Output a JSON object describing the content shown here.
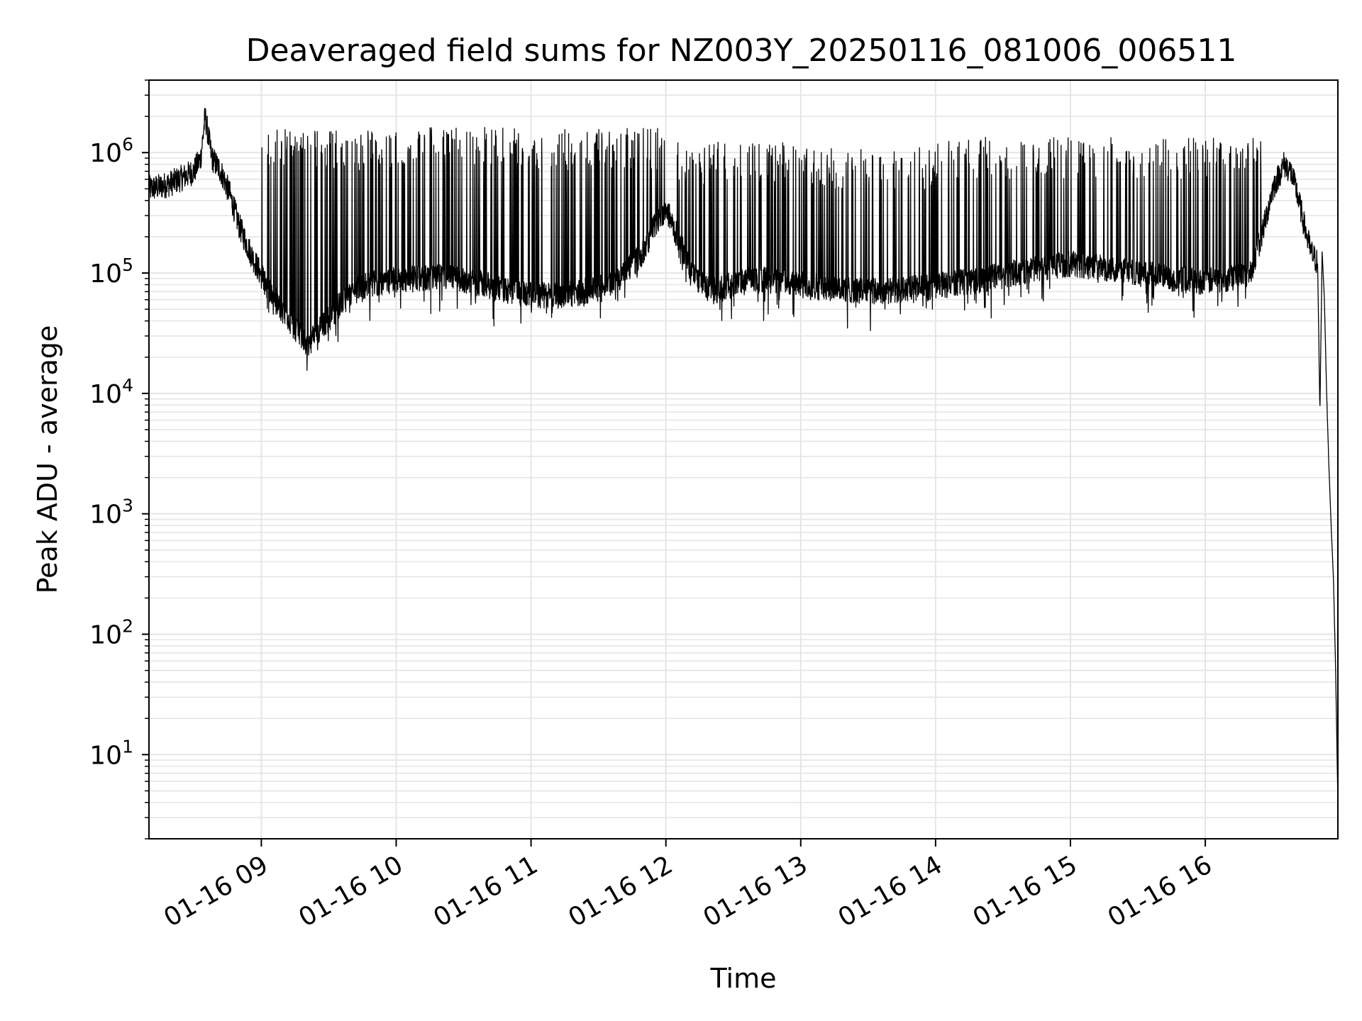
{
  "chart_data": {
    "type": "line",
    "title": "Deaveraged field sums for NZ003Y_20250116_081006_006511",
    "xlabel": "Time",
    "ylabel": "Peak ADU - average",
    "y_scale": "log",
    "x_range": [
      "2025-01-16 08:10",
      "2025-01-16 16:59"
    ],
    "ylim": [
      2,
      4000000
    ],
    "grid": true,
    "line_color": "#000000",
    "grid_color": "#e5e5e5",
    "x_ticks": [
      {
        "time": "2025-01-16 09:00",
        "label": "01-16 09"
      },
      {
        "time": "2025-01-16 10:00",
        "label": "01-16 10"
      },
      {
        "time": "2025-01-16 11:00",
        "label": "01-16 11"
      },
      {
        "time": "2025-01-16 12:00",
        "label": "01-16 12"
      },
      {
        "time": "2025-01-16 13:00",
        "label": "01-16 13"
      },
      {
        "time": "2025-01-16 14:00",
        "label": "01-16 14"
      },
      {
        "time": "2025-01-16 15:00",
        "label": "01-16 15"
      },
      {
        "time": "2025-01-16 16:00",
        "label": "01-16 16"
      }
    ],
    "y_ticks": [
      {
        "value": 10,
        "base": "10",
        "exp": "1"
      },
      {
        "value": 100,
        "base": "10",
        "exp": "2"
      },
      {
        "value": 1000,
        "base": "10",
        "exp": "3"
      },
      {
        "value": 10000,
        "base": "10",
        "exp": "4"
      },
      {
        "value": 100000,
        "base": "10",
        "exp": "5"
      },
      {
        "value": 1000000,
        "base": "10",
        "exp": "6"
      }
    ],
    "series": [
      {
        "points": [
          [
            "2025-01-16 08:10",
            500000
          ],
          [
            "2025-01-16 08:15",
            520000
          ],
          [
            "2025-01-16 08:20",
            560000
          ],
          [
            "2025-01-16 08:25",
            620000
          ],
          [
            "2025-01-16 08:30",
            700000
          ],
          [
            "2025-01-16 08:33",
            900000
          ],
          [
            "2025-01-16 08:35",
            2000000
          ],
          [
            "2025-01-16 08:38",
            900000
          ],
          [
            "2025-01-16 08:42",
            700000
          ],
          [
            "2025-01-16 08:46",
            450000
          ],
          [
            "2025-01-16 08:50",
            250000
          ],
          [
            "2025-01-16 08:55",
            150000
          ],
          [
            "2025-01-16 09:00",
            95000
          ],
          [
            "2025-01-16 09:05",
            65000
          ],
          [
            "2025-01-16 09:10",
            45000
          ],
          [
            "2025-01-16 09:15",
            35000
          ],
          [
            "2025-01-16 09:20",
            25000
          ],
          [
            "2025-01-16 09:25",
            32000
          ],
          [
            "2025-01-16 09:30",
            42000
          ],
          [
            "2025-01-16 09:35",
            55000
          ],
          [
            "2025-01-16 09:40",
            68000
          ],
          [
            "2025-01-16 09:45",
            78000
          ],
          [
            "2025-01-16 09:50",
            82000
          ],
          [
            "2025-01-16 09:55",
            85000
          ],
          [
            "2025-01-16 10:00",
            88000
          ],
          [
            "2025-01-16 10:10",
            90000
          ],
          [
            "2025-01-16 10:20",
            92000
          ],
          [
            "2025-01-16 10:30",
            88000
          ],
          [
            "2025-01-16 10:40",
            80000
          ],
          [
            "2025-01-16 10:50",
            70000
          ],
          [
            "2025-01-16 11:00",
            65000
          ],
          [
            "2025-01-16 11:10",
            65000
          ],
          [
            "2025-01-16 11:20",
            68000
          ],
          [
            "2025-01-16 11:30",
            75000
          ],
          [
            "2025-01-16 11:40",
            90000
          ],
          [
            "2025-01-16 11:50",
            150000
          ],
          [
            "2025-01-16 11:55",
            250000
          ],
          [
            "2025-01-16 12:00",
            350000
          ],
          [
            "2025-01-16 12:05",
            200000
          ],
          [
            "2025-01-16 12:10",
            120000
          ],
          [
            "2025-01-16 12:15",
            85000
          ],
          [
            "2025-01-16 12:20",
            70000
          ],
          [
            "2025-01-16 12:30",
            80000
          ],
          [
            "2025-01-16 12:40",
            90000
          ],
          [
            "2025-01-16 12:50",
            85000
          ],
          [
            "2025-01-16 13:00",
            80000
          ],
          [
            "2025-01-16 13:15",
            75000
          ],
          [
            "2025-01-16 13:30",
            70000
          ],
          [
            "2025-01-16 13:45",
            72000
          ],
          [
            "2025-01-16 14:00",
            78000
          ],
          [
            "2025-01-16 14:15",
            85000
          ],
          [
            "2025-01-16 14:30",
            95000
          ],
          [
            "2025-01-16 14:45",
            110000
          ],
          [
            "2025-01-16 15:00",
            120000
          ],
          [
            "2025-01-16 15:15",
            110000
          ],
          [
            "2025-01-16 15:30",
            100000
          ],
          [
            "2025-01-16 15:45",
            90000
          ],
          [
            "2025-01-16 16:00",
            85000
          ],
          [
            "2025-01-16 16:10",
            90000
          ],
          [
            "2025-01-16 16:20",
            100000
          ],
          [
            "2025-01-16 16:25",
            200000
          ],
          [
            "2025-01-16 16:30",
            500000
          ],
          [
            "2025-01-16 16:35",
            800000
          ],
          [
            "2025-01-16 16:38",
            700000
          ],
          [
            "2025-01-16 16:41",
            450000
          ],
          [
            "2025-01-16 16:44",
            250000
          ],
          [
            "2025-01-16 16:47",
            150000
          ],
          [
            "2025-01-16 16:50",
            120000
          ],
          [
            "2025-01-16 16:51",
            7000
          ],
          [
            "2025-01-16 16:52",
            150000
          ],
          [
            "2025-01-16 16:53",
            60000
          ],
          [
            "2025-01-16 16:54",
            10000
          ],
          [
            "2025-01-16 16:55",
            2500
          ],
          [
            "2025-01-16 16:56",
            800
          ],
          [
            "2025-01-16 16:57",
            300
          ],
          [
            "2025-01-16 16:58",
            50
          ],
          [
            "2025-01-16 16:59",
            4
          ]
        ],
        "spikes": [
          {
            "from": "2025-01-16 09:00",
            "to": "2025-01-16 09:55",
            "peak": 1300000
          },
          {
            "from": "2025-01-16 09:55",
            "to": "2025-01-16 11:00",
            "peak": 1350000
          },
          {
            "from": "2025-01-16 11:00",
            "to": "2025-01-16 12:00",
            "peak": 1300000
          },
          {
            "from": "2025-01-16 12:05",
            "to": "2025-01-16 13:00",
            "peak": 1000000
          },
          {
            "from": "2025-01-16 13:00",
            "to": "2025-01-16 14:00",
            "peak": 900000
          },
          {
            "from": "2025-01-16 14:00",
            "to": "2025-01-16 15:00",
            "peak": 1100000
          },
          {
            "from": "2025-01-16 15:00",
            "to": "2025-01-16 16:25",
            "peak": 1100000
          }
        ]
      }
    ]
  }
}
